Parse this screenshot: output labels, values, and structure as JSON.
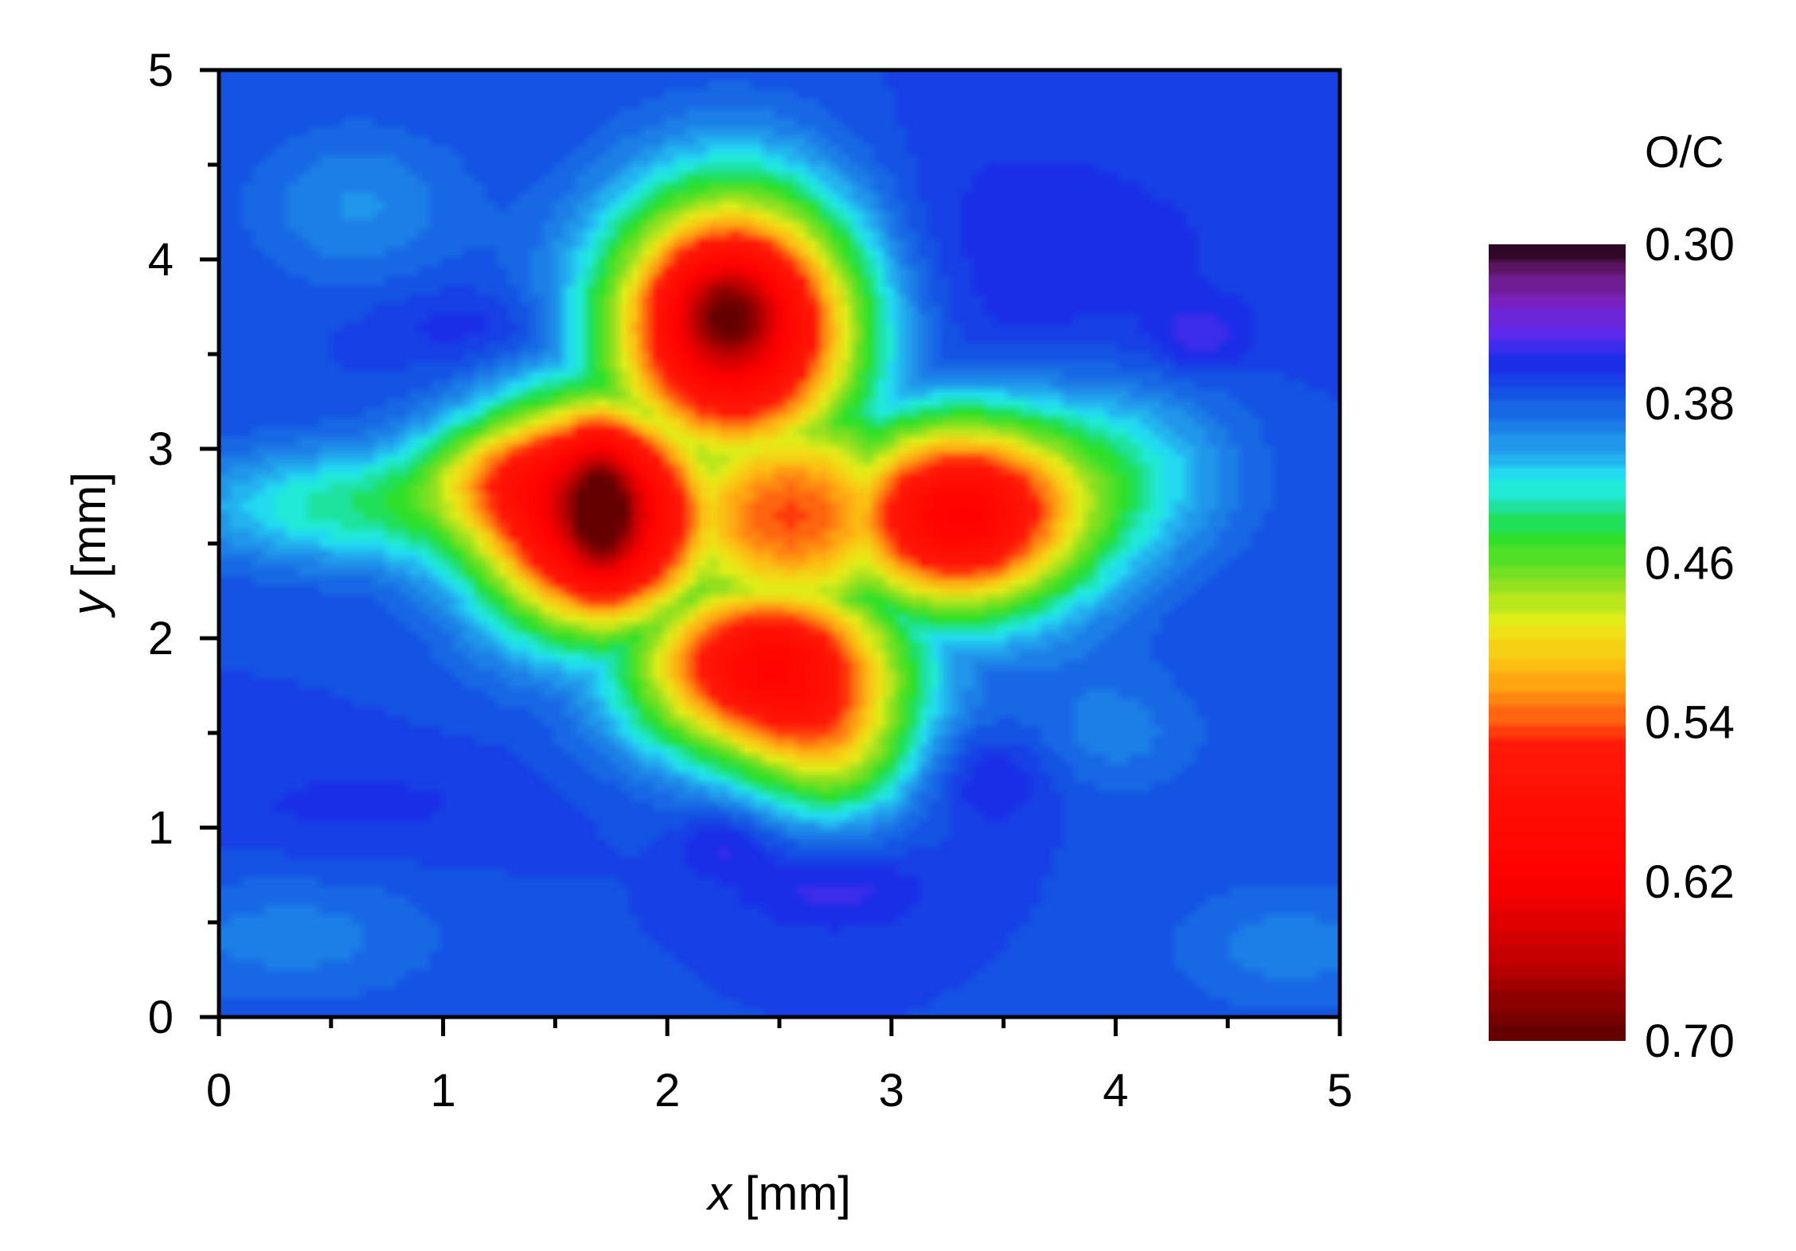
{
  "chart_data": {
    "type": "heatmap",
    "title": "",
    "xlabel": {
      "var": "x",
      "unit": "[mm]"
    },
    "ylabel": {
      "var": "y",
      "unit": "[mm]"
    },
    "xlim": [
      0,
      5
    ],
    "ylim": [
      0,
      5
    ],
    "x_ticks": [
      "0",
      "1",
      "2",
      "3",
      "4",
      "5"
    ],
    "y_ticks": [
      "0",
      "1",
      "2",
      "3",
      "4",
      "5"
    ],
    "colorbar": {
      "title": "O/C",
      "range": [
        0.3,
        0.7
      ],
      "ticks": [
        "0.30",
        "0.38",
        "0.46",
        "0.54",
        "0.62",
        "0.70"
      ],
      "placement": "right",
      "reversed": true,
      "colormap": [
        {
          "value": 0.3,
          "color": "#000000"
        },
        {
          "value": 0.305,
          "color": "#3a0a2e"
        },
        {
          "value": 0.315,
          "color": "#6a1a78"
        },
        {
          "value": 0.33,
          "color": "#7a22c8"
        },
        {
          "value": 0.345,
          "color": "#5a2af0"
        },
        {
          "value": 0.36,
          "color": "#1a2ee8"
        },
        {
          "value": 0.375,
          "color": "#1450e4"
        },
        {
          "value": 0.39,
          "color": "#1b78e6"
        },
        {
          "value": 0.405,
          "color": "#23a6ee"
        },
        {
          "value": 0.42,
          "color": "#22eef2"
        },
        {
          "value": 0.435,
          "color": "#1de08a"
        },
        {
          "value": 0.445,
          "color": "#22e02a"
        },
        {
          "value": 0.47,
          "color": "#8ce020"
        },
        {
          "value": 0.49,
          "color": "#e8ee18"
        },
        {
          "value": 0.515,
          "color": "#ffb812"
        },
        {
          "value": 0.535,
          "color": "#ff6a10"
        },
        {
          "value": 0.55,
          "color": "#ff1a08"
        },
        {
          "value": 0.62,
          "color": "#ff0000"
        },
        {
          "value": 0.66,
          "color": "#c00000"
        },
        {
          "value": 0.7,
          "color": "#5a0000"
        }
      ]
    },
    "grid_step": 0.05,
    "background_value": 0.372,
    "features": [
      {
        "kind": "blob",
        "x": 1.7,
        "y": 2.65,
        "amp": 0.28,
        "sx": 0.38,
        "sy": 0.42
      },
      {
        "kind": "blob",
        "x": 2.3,
        "y": 3.65,
        "amp": 0.27,
        "sx": 0.4,
        "sy": 0.5
      },
      {
        "kind": "blob",
        "x": 3.3,
        "y": 2.65,
        "amp": 0.24,
        "sx": 0.4,
        "sy": 0.36
      },
      {
        "kind": "blob",
        "x": 2.45,
        "y": 1.85,
        "amp": 0.23,
        "sx": 0.42,
        "sy": 0.34
      },
      {
        "kind": "blob",
        "x": 2.55,
        "y": 2.65,
        "amp": 0.17,
        "sx": 0.48,
        "sy": 0.45
      },
      {
        "kind": "blob",
        "x": 2.75,
        "y": 1.35,
        "amp": 0.07,
        "sx": 0.25,
        "sy": 0.25
      },
      {
        "kind": "blob",
        "x": 0.55,
        "y": 2.7,
        "amp": 0.06,
        "sx": 0.5,
        "sy": 0.22
      },
      {
        "kind": "blob",
        "x": 1.2,
        "y": 2.9,
        "amp": 0.05,
        "sx": 0.25,
        "sy": 0.18
      },
      {
        "kind": "blob",
        "x": 4.1,
        "y": 2.9,
        "amp": 0.04,
        "sx": 0.35,
        "sy": 0.35
      },
      {
        "kind": "blob",
        "x": 0.6,
        "y": 4.3,
        "amp": 0.025,
        "sx": 0.35,
        "sy": 0.3
      },
      {
        "kind": "blob",
        "x": 0.3,
        "y": 0.4,
        "amp": 0.02,
        "sx": 0.5,
        "sy": 0.25
      },
      {
        "kind": "blob",
        "x": 4.8,
        "y": 0.35,
        "amp": 0.02,
        "sx": 0.4,
        "sy": 0.25
      },
      {
        "kind": "blob",
        "x": 4.0,
        "y": 1.5,
        "amp": 0.02,
        "sx": 0.3,
        "sy": 0.25
      },
      {
        "kind": "blob",
        "x": 3.5,
        "y": 4.0,
        "amp": -0.015,
        "sx": 0.8,
        "sy": 0.5
      },
      {
        "kind": "blob",
        "x": 4.4,
        "y": 3.6,
        "amp": -0.02,
        "sx": 0.15,
        "sy": 0.12
      },
      {
        "kind": "blob",
        "x": 2.75,
        "y": 0.65,
        "amp": -0.02,
        "sx": 0.3,
        "sy": 0.15
      },
      {
        "kind": "blob",
        "x": 2.25,
        "y": 0.9,
        "amp": -0.02,
        "sx": 0.15,
        "sy": 0.12
      },
      {
        "kind": "blob",
        "x": 3.45,
        "y": 1.25,
        "amp": -0.02,
        "sx": 0.2,
        "sy": 0.18
      },
      {
        "kind": "blob",
        "x": 1.1,
        "y": 3.65,
        "amp": -0.015,
        "sx": 0.3,
        "sy": 0.15
      },
      {
        "kind": "blob",
        "x": 0.6,
        "y": 1.1,
        "amp": -0.01,
        "sx": 0.6,
        "sy": 0.2
      },
      {
        "kind": "well",
        "x": 1.7,
        "y": 2.7,
        "depth": 0.08,
        "sx": 0.1,
        "sy": 0.28
      },
      {
        "kind": "well",
        "x": 2.25,
        "y": 3.75,
        "depth": 0.07,
        "sx": 0.16,
        "sy": 0.2
      }
    ]
  }
}
